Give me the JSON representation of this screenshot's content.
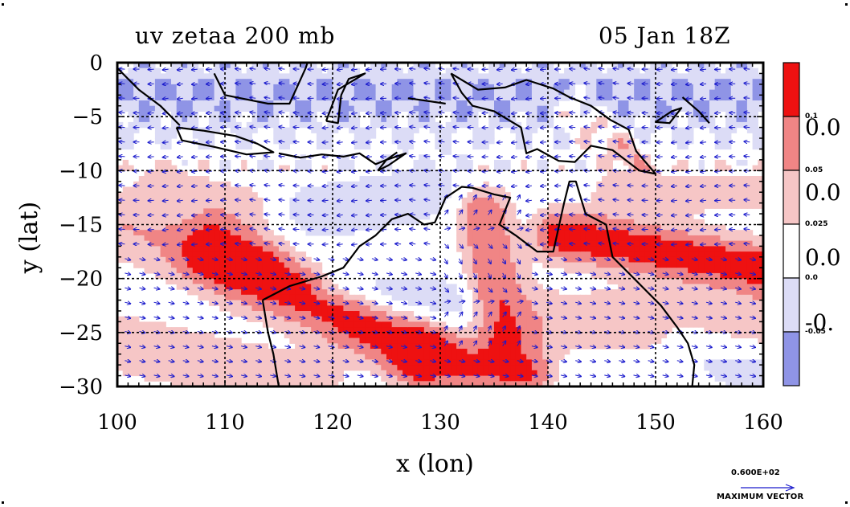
{
  "header": {
    "title_left": "uv zetaa 200 mb",
    "title_right": "05 Jan 18Z"
  },
  "chart_data": {
    "type": "heatmap",
    "title": "uv zetaa 200 mb",
    "subtitle": "05 Jan 18Z",
    "xlabel": "x (lon)",
    "ylabel": "y (lat)",
    "xlim": [
      100,
      160
    ],
    "ylim": [
      -30,
      0
    ],
    "x_ticks": [
      100,
      110,
      120,
      130,
      140,
      150,
      160
    ],
    "y_ticks": [
      0,
      -5,
      -10,
      -15,
      -20,
      -25,
      -30
    ],
    "grid": true,
    "colorbar": {
      "levels": [
        {
          "label": "0.1",
          "color": "#ee1111"
        },
        {
          "label": "0.05",
          "color": "#f08585"
        },
        {
          "label": "0.025",
          "color": "#f6c6c6"
        },
        {
          "label": "0.0",
          "color": "#ffffff"
        },
        {
          "label": "-0.05",
          "color": "#dcdcf6"
        },
        {
          "label": "",
          "color": "#8f94e6"
        }
      ],
      "large_labels": [
        "0.0",
        "0.0",
        "0.0",
        "-0."
      ]
    },
    "vector_legend": {
      "magnitude": "0.600E+02",
      "caption": "MAXIMUM VECTOR"
    },
    "vector_color": "#1a1acc",
    "contour_color": "#dd0000",
    "coast_color": "#000000"
  }
}
